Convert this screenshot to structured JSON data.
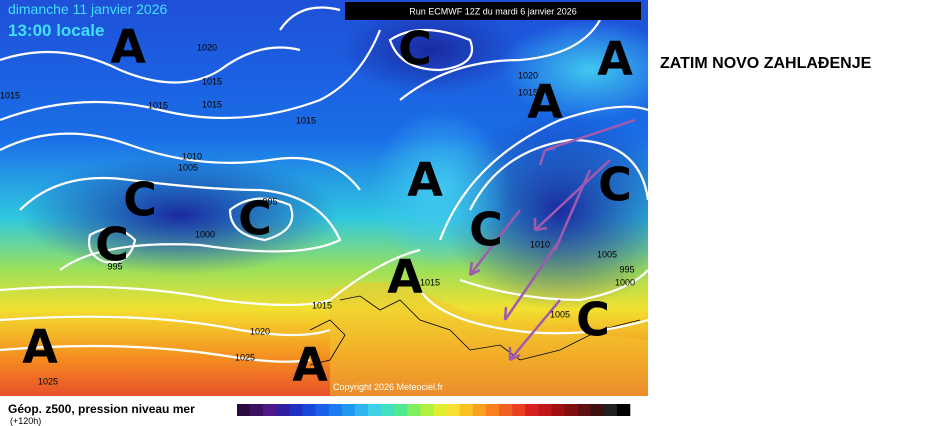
{
  "header": {
    "date": "dimanche 11 janvier 2026",
    "time": "13:00 locale",
    "run": "Run ECMWF 12Z du mardi 6 janvier 2026"
  },
  "annotation": "ZATIM NOVO ZAHLAĐENJE",
  "footer": {
    "legend_title": "Géop. z500, pression niveau mer",
    "lead_time": "(+120h)",
    "copyright": "Copyright 2026 Meteociel.fr"
  },
  "pressure_systems": [
    "A",
    "A",
    "C",
    "A",
    "C",
    "A",
    "C",
    "C",
    "C",
    "C",
    "A",
    "C",
    "A",
    "A"
  ],
  "isobar_labels": [
    "1020",
    "1015",
    "1015",
    "1015",
    "1015",
    "1015",
    "1010",
    "1005",
    "995",
    "1000",
    "995",
    "1020",
    "1015",
    "1010",
    "1005",
    "995",
    "1000",
    "1015",
    "1015",
    "1020",
    "1025",
    "1025",
    "1005"
  ]
}
